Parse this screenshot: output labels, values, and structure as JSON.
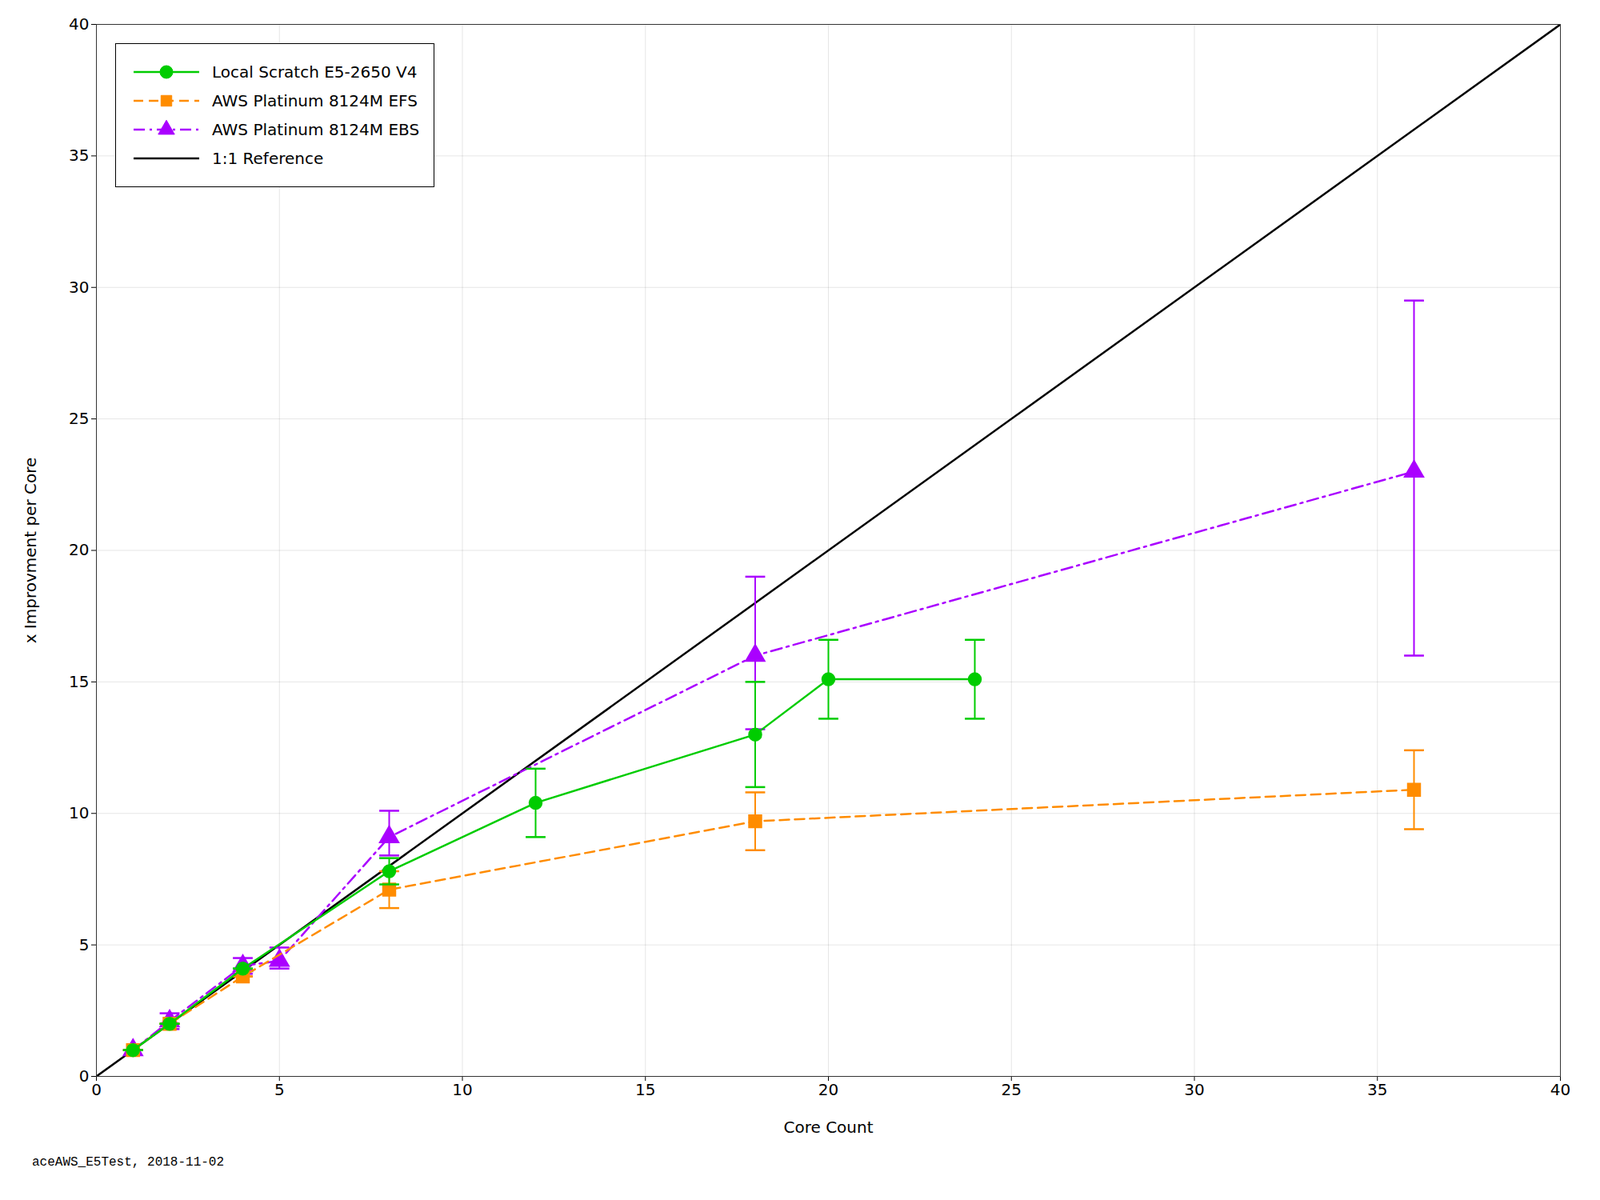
{
  "chart_data": {
    "type": "line",
    "xlabel": "Core Count",
    "ylabel": "x Improvment per Core",
    "footnote": "aceAWS_E5Test, 2018-11-02",
    "xlim": [
      0,
      40
    ],
    "ylim": [
      0,
      40
    ],
    "xticks": [
      0,
      5,
      10,
      15,
      20,
      25,
      30,
      35,
      40
    ],
    "yticks": [
      0,
      5,
      10,
      15,
      20,
      25,
      30,
      35,
      40
    ],
    "grid": true,
    "legend": "upper left",
    "series": [
      {
        "name": "Local Scratch E5-2650 V4",
        "color": "#00CC00",
        "marker": "circle",
        "line_style": "solid",
        "x": [
          1,
          2,
          4,
          8,
          12,
          18,
          20,
          24
        ],
        "values": [
          1.0,
          2.0,
          4.1,
          7.8,
          10.4,
          13.0,
          15.1,
          15.1
        ],
        "error_minus": [
          0.0,
          0.0,
          0.0,
          0.5,
          1.3,
          2.0,
          1.5,
          1.5
        ],
        "error_plus": [
          0.0,
          0.0,
          0.0,
          0.5,
          1.3,
          2.0,
          1.5,
          1.5
        ]
      },
      {
        "name": "AWS Platinum 8124M EFS",
        "color": "#FF8C00",
        "marker": "square",
        "line_style": "dashed",
        "x": [
          1,
          2,
          4,
          8,
          18,
          36
        ],
        "values": [
          1.0,
          2.0,
          3.8,
          7.1,
          9.7,
          10.9
        ],
        "error_minus": [
          0.0,
          0.0,
          0.0,
          0.7,
          1.1,
          1.5
        ],
        "error_plus": [
          0.0,
          0.0,
          0.0,
          0.7,
          1.1,
          1.5
        ]
      },
      {
        "name": "AWS Platinum 8124M EBS",
        "color": "#AA00FF",
        "marker": "triangle",
        "line_style": "dashdot",
        "x": [
          1,
          2,
          4,
          5,
          8,
          18,
          36
        ],
        "values": [
          1.0,
          2.1,
          4.2,
          4.4,
          9.1,
          16.0,
          23.0
        ],
        "error_minus": [
          0.0,
          0.3,
          0.3,
          0.3,
          0.7,
          2.8,
          7.0
        ],
        "error_plus": [
          0.0,
          0.3,
          0.3,
          0.5,
          1.0,
          3.0,
          6.5
        ]
      },
      {
        "name": "1:1 Reference",
        "color": "#000000",
        "line_style": "solid",
        "x": [
          0,
          40
        ],
        "values": [
          0,
          40
        ]
      }
    ]
  }
}
